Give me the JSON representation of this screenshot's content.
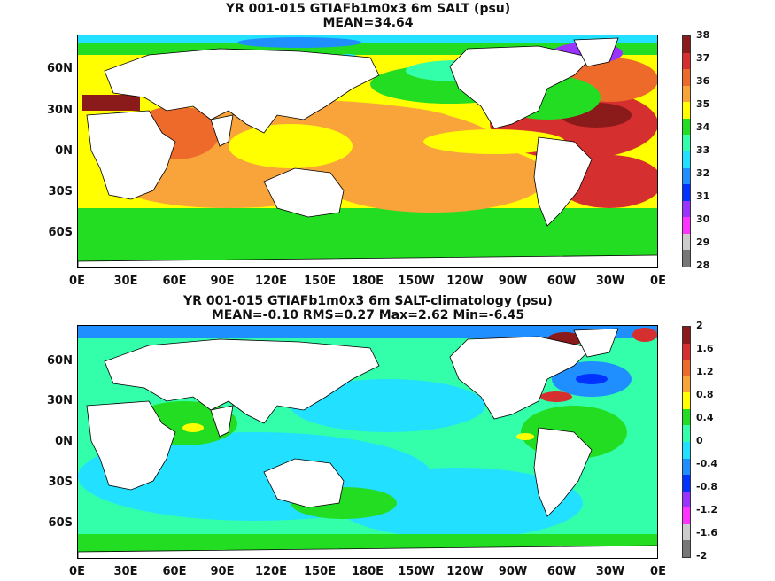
{
  "panel1": {
    "title_line1": "YR 001-015 GTIAFb1m0x3 6m SALT (psu)",
    "title_line2": "MEAN=34.64",
    "colorbar": {
      "labels": [
        "38",
        "37",
        "36",
        "35",
        "34",
        "33",
        "32",
        "31",
        "30",
        "29",
        "28"
      ],
      "colors": [
        "#8b1a1a",
        "#d62f2f",
        "#ee6a2a",
        "#f8a43a",
        "#ffff00",
        "#22dd22",
        "#33ffaa",
        "#22e0ff",
        "#1f8fff",
        "#0033ff",
        "#9933ff",
        "#ff33ff",
        "#cccccc",
        "#777777"
      ]
    }
  },
  "panel2": {
    "title_line1": "YR 001-015 GTIAFb1m0x3 6m SALT-climatology (psu)",
    "title_line2": "MEAN=-0.10   RMS=0.27   Max=2.62   Min=-6.45",
    "colorbar": {
      "labels": [
        "2",
        "1.6",
        "1.2",
        "0.8",
        "0.4",
        "0",
        "-0.4",
        "-0.8",
        "-1.2",
        "-1.6",
        "-2"
      ],
      "colors": [
        "#8b1a1a",
        "#d62f2f",
        "#ee6a2a",
        "#f8a43a",
        "#ffff00",
        "#22dd22",
        "#33ffaa",
        "#22e0ff",
        "#1f8fff",
        "#0033ff",
        "#9933ff",
        "#ff33ff",
        "#cccccc",
        "#777777"
      ]
    }
  },
  "y_ticks": [
    "60N",
    "30N",
    "0N",
    "30S",
    "60S"
  ],
  "x_ticks": [
    "0E",
    "30E",
    "60E",
    "90E",
    "120E",
    "150E",
    "180E",
    "150W",
    "120W",
    "90W",
    "60W",
    "30W",
    "0E"
  ]
}
